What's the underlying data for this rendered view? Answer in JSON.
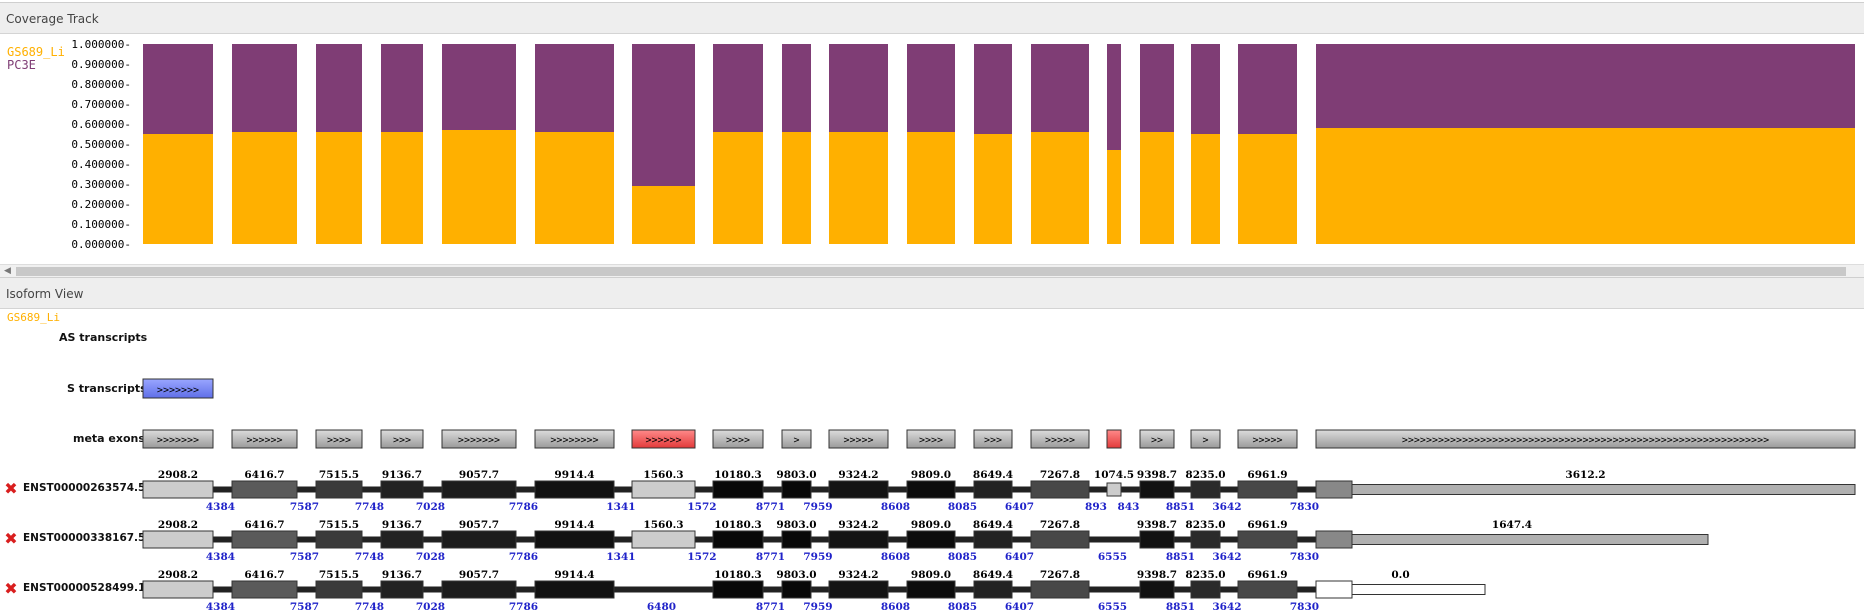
{
  "coverage_panel": {
    "title": "Coverage Track",
    "legend": [
      {
        "name": "GS689_Li",
        "color": "#ffb000"
      },
      {
        "name": "PC3E",
        "color": "#7f3d75"
      }
    ],
    "y_ticks": [
      "1.000000",
      "0.900000",
      "0.800000",
      "0.700000",
      "0.600000",
      "0.500000",
      "0.400000",
      "0.300000",
      "0.200000",
      "0.100000",
      "0.000000"
    ]
  },
  "chart_data": {
    "type": "area",
    "ylim": [
      0,
      1
    ],
    "series": [
      {
        "name": "GS689_Li",
        "color": "#ffb000"
      },
      {
        "name": "PC3E",
        "color": "#7f3d75"
      }
    ],
    "exon_fractions": [
      0.55,
      0.56,
      0.56,
      0.56,
      0.57,
      0.56,
      0.29,
      0.56,
      0.56,
      0.56,
      0.56,
      0.55,
      0.56,
      0.47,
      0.56,
      0.55,
      0.55,
      0.58
    ]
  },
  "isoform_panel": {
    "title": "Isoform View",
    "sample_label": "GS689_Li",
    "as_label": "AS transcripts",
    "s_label": "S transcripts",
    "meta_label": "meta exons",
    "s_transcript_arrows": ">>>>>>>",
    "meta_exon_arrows": [
      ">>>>>>>",
      ">>>>>>",
      ">>>>",
      ">>>",
      ">>>>>>>",
      ">>>>>>>>",
      ">>>>>>",
      ">>>>",
      ">",
      ">>>>>",
      ">>>>",
      ">>>",
      ">>>>>",
      "",
      ">>",
      ">",
      ">>>>>",
      ">>>>>>>>>>>>>>>>>>>>>>>>>>>>>>>>>>>>>>>>>>>>>>>>>>>>>>>>>>>>>"
    ],
    "transcripts": [
      {
        "name": "ENST00000263574.5",
        "exon_values": [
          "2908.2",
          "6416.7",
          "7515.5",
          "9136.7",
          "9057.7",
          "9914.4",
          "1560.3",
          "10180.3",
          "9803.0",
          "9324.2",
          "9809.0",
          "8649.4",
          "7267.8",
          "1074.5",
          "9398.7",
          "8235.0",
          "6961.9",
          "3612.2"
        ],
        "junction_counts": [
          "4384",
          "7587",
          "7748",
          "7028",
          "7786",
          "1341",
          "1572",
          "8771",
          "7959",
          "8608",
          "8085",
          "6407",
          "893",
          "843",
          "8851",
          "3642",
          "7830"
        ]
      },
      {
        "name": "ENST00000338167.5",
        "exon_values": [
          "2908.2",
          "6416.7",
          "7515.5",
          "9136.7",
          "9057.7",
          "9914.4",
          "1560.3",
          "10180.3",
          "9803.0",
          "9324.2",
          "9809.0",
          "8649.4",
          "7267.8",
          "9398.7",
          "8235.0",
          "6961.9",
          "1647.4"
        ],
        "junction_counts": [
          "4384",
          "7587",
          "7748",
          "7028",
          "7786",
          "1341",
          "1572",
          "8771",
          "7959",
          "8608",
          "8085",
          "6407",
          "6555",
          "8851",
          "3642",
          "7830"
        ]
      },
      {
        "name": "ENST00000528499.1",
        "exon_values": [
          "2908.2",
          "6416.7",
          "7515.5",
          "9136.7",
          "9057.7",
          "9914.4",
          "10180.3",
          "9803.0",
          "9324.2",
          "9809.0",
          "8649.4",
          "7267.8",
          "9398.7",
          "8235.0",
          "6961.9",
          "0.0"
        ],
        "junction_counts": [
          "4384",
          "7587",
          "7748",
          "7028",
          "7786",
          "6480",
          "8771",
          "7959",
          "8608",
          "8085",
          "6407",
          "6555",
          "8851",
          "3642",
          "7830"
        ]
      }
    ]
  }
}
